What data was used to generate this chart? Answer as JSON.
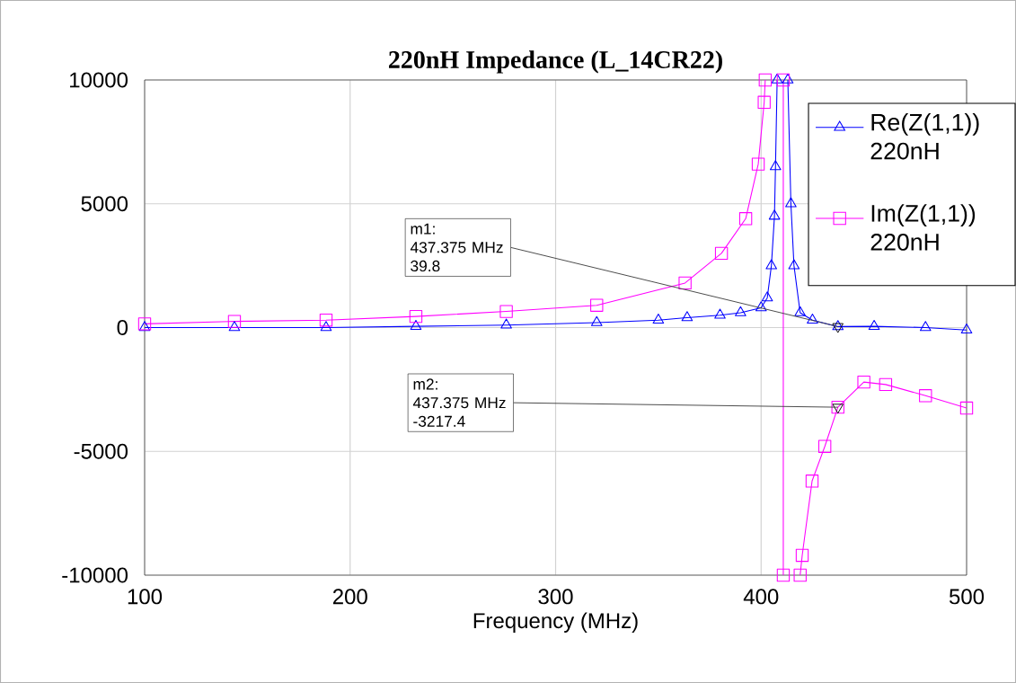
{
  "chart_data": {
    "type": "line",
    "title": "220nH Impedance (L_14CR22)",
    "xlabel": "Frequency (MHz)",
    "xlim": [
      100,
      500
    ],
    "ylim": [
      -10000,
      10000
    ],
    "xticks": [
      100,
      200,
      300,
      400,
      500
    ],
    "yticks": [
      -10000,
      -5000,
      0,
      5000,
      10000
    ],
    "grid": true,
    "legend": "top right",
    "line_style": "solid",
    "series": [
      {
        "name": "Re(Z(1,1))\n220nH",
        "color": "#0000ff",
        "marker": "triangle",
        "x": [
          100,
          143.7,
          188.3,
          232,
          276,
          320,
          350,
          364,
          380,
          390,
          400,
          403,
          405,
          406.5,
          407,
          407.8,
          410,
          413,
          414.5,
          416,
          419,
          425,
          437.375,
          455,
          480,
          500
        ],
        "values": [
          0,
          0,
          0,
          50,
          100,
          200,
          300,
          400,
          500,
          600,
          800,
          1200,
          2500,
          4500,
          6500,
          10000,
          null,
          10000,
          5000,
          2500,
          600,
          300,
          39.8,
          50,
          0,
          -100
        ]
      },
      {
        "name": "Im(Z(1,1))\n220nH",
        "color": "#ff00ff",
        "marker": "square",
        "x": [
          100,
          143.7,
          188.3,
          232,
          276,
          320,
          363,
          380.7,
          392.5,
          398.6,
          401.5,
          402,
          406,
          410.8,
          410.8,
          415,
          419,
          420,
          424.8,
          431,
          437.375,
          450,
          460.6,
          480,
          500
        ],
        "values": [
          150,
          250,
          300,
          450,
          650,
          900,
          1800,
          3000,
          4400,
          6600,
          9100,
          10000,
          null,
          10000,
          -10000,
          null,
          -10000,
          -9200,
          -6200,
          -4800,
          -3217.4,
          -2200,
          -2300,
          -2750,
          -3250
        ]
      }
    ],
    "annotations": [
      {
        "text": "m1:\n437.375 MHz\n39.8",
        "x": 437.375,
        "y": 39.8
      },
      {
        "text": "m2:\n437.375 MHz\n-3217.4",
        "x": 437.375,
        "y": -3217.4
      }
    ]
  }
}
